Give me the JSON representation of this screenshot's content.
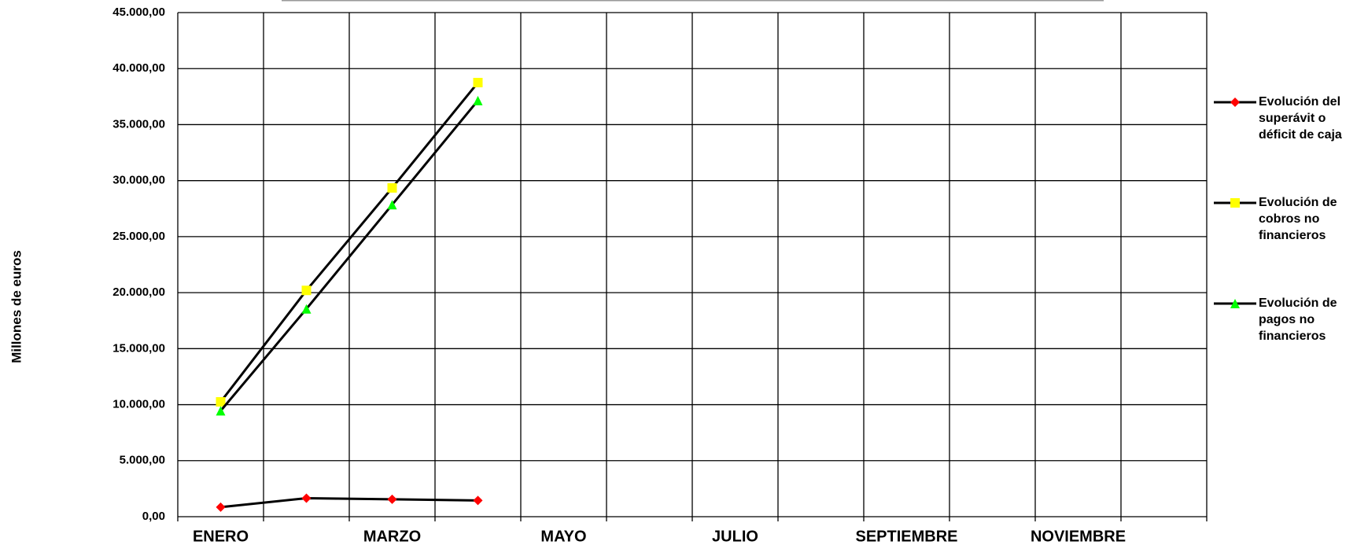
{
  "chart_data": {
    "type": "line",
    "y_label": "Millones  de euros",
    "categories": [
      "ENERO",
      null,
      "MARZO",
      null,
      "MAYO",
      null,
      "JULIO",
      null,
      "SEPTIEMBRE",
      null,
      "NOVIEMBRE",
      null
    ],
    "series": [
      {
        "name": "Evolución del superávit o déficit de caja",
        "color": "#ff0000",
        "marker": "diamond",
        "values": [
          850,
          1650,
          1550,
          1450,
          null,
          null,
          null,
          null,
          null,
          null,
          null,
          null
        ]
      },
      {
        "name": "Evolución de cobros no financieros",
        "color": "#ffff00",
        "marker": "square",
        "values": [
          10250,
          20200,
          29350,
          38750,
          null,
          null,
          null,
          null,
          null,
          null,
          null,
          null
        ]
      },
      {
        "name": "Evolución de pagos no financieros",
        "color": "#00ff00",
        "marker": "triangle",
        "values": [
          9450,
          18550,
          27850,
          37150,
          null,
          null,
          null,
          null,
          null,
          null,
          null,
          null
        ]
      }
    ],
    "ylim": [
      0,
      45000
    ],
    "yticks": [
      {
        "value": 0,
        "label": "0,00"
      },
      {
        "value": 5000,
        "label": "5.000,00"
      },
      {
        "value": 10000,
        "label": "10.000,00"
      },
      {
        "value": 15000,
        "label": "15.000,00"
      },
      {
        "value": 20000,
        "label": "20.000,00"
      },
      {
        "value": 25000,
        "label": "25.000,00"
      },
      {
        "value": 30000,
        "label": "30.000,00"
      },
      {
        "value": 35000,
        "label": "35.000,00"
      },
      {
        "value": 40000,
        "label": "40.000,00"
      },
      {
        "value": 45000,
        "label": "45.000,00"
      }
    ],
    "grid": true,
    "legend": "right"
  }
}
